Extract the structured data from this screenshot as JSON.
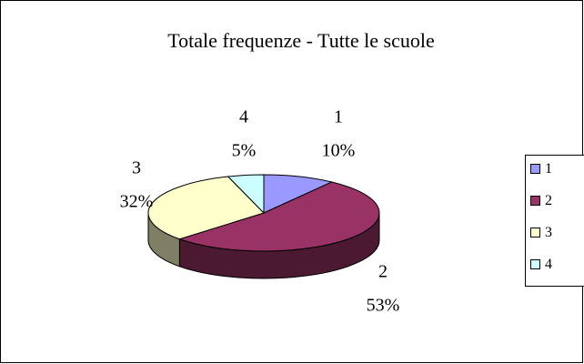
{
  "chart_data": {
    "type": "pie3d",
    "title": "Totale frequenze - Tutte le scuole",
    "categories": [
      "1",
      "2",
      "3",
      "4"
    ],
    "values": [
      10,
      53,
      32,
      5
    ],
    "value_labels": [
      "10%",
      "53%",
      "32%",
      "5%"
    ],
    "colors": [
      "#9999ff",
      "#993366",
      "#ffffcc",
      "#ccffff"
    ],
    "legend": "right"
  }
}
